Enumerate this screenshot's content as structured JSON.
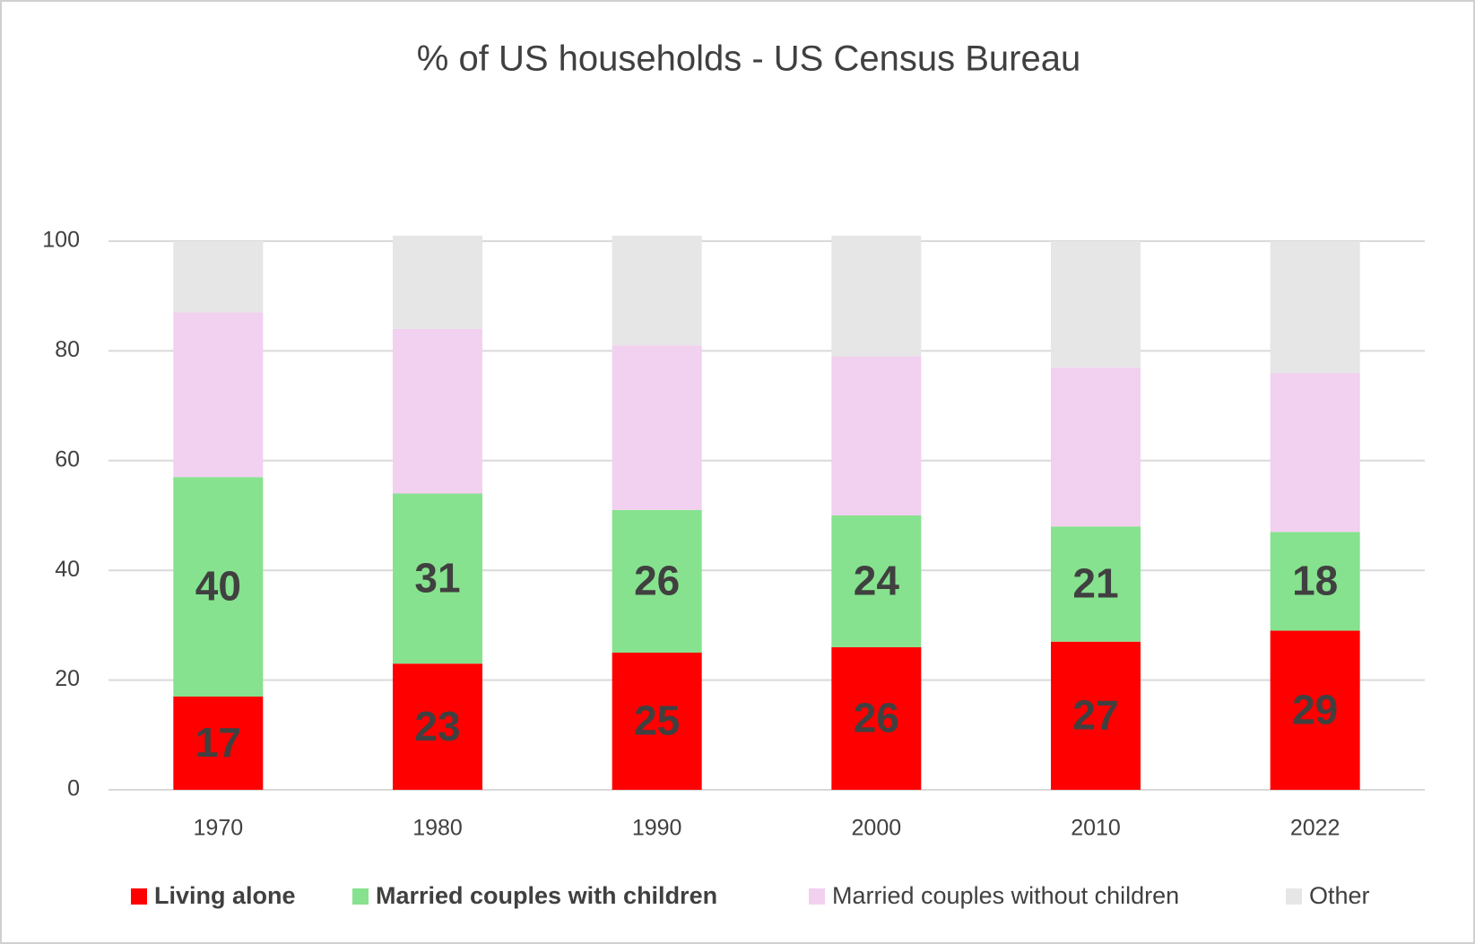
{
  "chart_data": {
    "type": "stacked_bar",
    "title": "% of US households - US Census Bureau",
    "categories": [
      "1970",
      "1980",
      "1990",
      "2000",
      "2010",
      "2022"
    ],
    "series": [
      {
        "name": "Living alone",
        "color": "#ff0000",
        "values": [
          17,
          23,
          25,
          26,
          27,
          29
        ],
        "labels": true,
        "bold": true
      },
      {
        "name": "Married couples with children",
        "color": "#86e28e",
        "values": [
          40,
          31,
          26,
          24,
          21,
          18
        ],
        "labels": true,
        "bold": true
      },
      {
        "name": "Married couples without children",
        "color": "#f2d0f0",
        "values": [
          30,
          30,
          30,
          29,
          29,
          29
        ],
        "labels": false,
        "bold": false
      },
      {
        "name": "Other",
        "color": "#e6e6e6",
        "values": [
          13,
          17,
          20,
          22,
          23,
          24
        ],
        "labels": false,
        "bold": false
      }
    ],
    "ylim": [
      0,
      100
    ],
    "yticks": [
      0,
      20,
      40,
      60,
      80,
      100
    ],
    "grid": true,
    "legend": "bottom"
  }
}
